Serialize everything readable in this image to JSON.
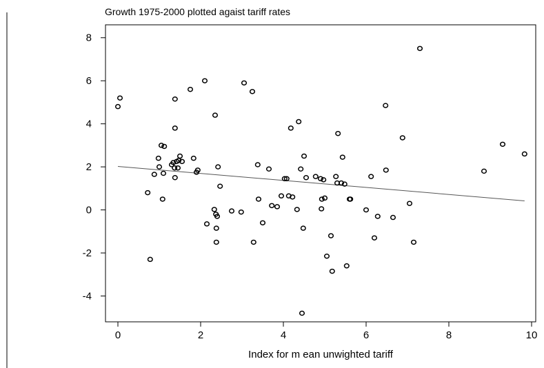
{
  "chart_data": {
    "type": "scatter",
    "title": "Growth 1975-2000 plotted agaist tariff rates",
    "xlabel": "Index for m ean unwighted tariff",
    "ylabel": "",
    "xlim": [
      -0.3,
      10.1
    ],
    "ylim": [
      -5.2,
      8.6
    ],
    "xticks": [
      0,
      2,
      4,
      6,
      8,
      10
    ],
    "yticks": [
      -4,
      -2,
      0,
      2,
      4,
      6,
      8
    ],
    "grid": false,
    "legend": "none",
    "marker": "hollow-circle",
    "colors": {
      "points": "#000000",
      "fit_line": "#555555",
      "axes": "#000000"
    },
    "points": [
      [
        0.0,
        4.8
      ],
      [
        0.05,
        5.2
      ],
      [
        0.72,
        0.8
      ],
      [
        0.78,
        -2.3
      ],
      [
        0.88,
        1.65
      ],
      [
        0.98,
        2.4
      ],
      [
        1.0,
        2.0
      ],
      [
        1.05,
        3.0
      ],
      [
        1.08,
        0.5
      ],
      [
        1.1,
        1.7
      ],
      [
        1.12,
        2.95
      ],
      [
        1.3,
        2.1
      ],
      [
        1.34,
        2.2
      ],
      [
        1.37,
        1.95
      ],
      [
        1.38,
        1.5
      ],
      [
        1.38,
        3.8
      ],
      [
        1.38,
        5.15
      ],
      [
        1.42,
        2.25
      ],
      [
        1.45,
        1.95
      ],
      [
        1.47,
        2.3
      ],
      [
        1.5,
        2.5
      ],
      [
        1.55,
        2.25
      ],
      [
        1.75,
        5.6
      ],
      [
        1.83,
        2.4
      ],
      [
        1.9,
        1.75
      ],
      [
        1.93,
        1.85
      ],
      [
        2.1,
        6.0
      ],
      [
        2.15,
        -0.65
      ],
      [
        2.33,
        0.02
      ],
      [
        2.35,
        4.4
      ],
      [
        2.37,
        -0.2
      ],
      [
        2.38,
        -0.85
      ],
      [
        2.38,
        -1.5
      ],
      [
        2.4,
        -0.3
      ],
      [
        2.42,
        2.0
      ],
      [
        2.47,
        1.1
      ],
      [
        2.75,
        -0.05
      ],
      [
        2.98,
        -0.1
      ],
      [
        3.05,
        5.9
      ],
      [
        3.25,
        5.5
      ],
      [
        3.28,
        -1.5
      ],
      [
        3.38,
        2.1
      ],
      [
        3.4,
        0.5
      ],
      [
        3.5,
        -0.6
      ],
      [
        3.65,
        1.9
      ],
      [
        3.72,
        0.2
      ],
      [
        3.85,
        0.15
      ],
      [
        3.95,
        0.65
      ],
      [
        4.03,
        1.45
      ],
      [
        4.08,
        1.45
      ],
      [
        4.13,
        0.65
      ],
      [
        4.18,
        3.8
      ],
      [
        4.22,
        0.6
      ],
      [
        4.33,
        0.02
      ],
      [
        4.37,
        4.1
      ],
      [
        4.42,
        1.9
      ],
      [
        4.45,
        -4.8
      ],
      [
        4.48,
        -0.85
      ],
      [
        4.5,
        2.5
      ],
      [
        4.55,
        1.5
      ],
      [
        4.78,
        1.55
      ],
      [
        4.9,
        1.45
      ],
      [
        4.92,
        0.05
      ],
      [
        4.93,
        0.5
      ],
      [
        4.97,
        1.4
      ],
      [
        5.0,
        0.55
      ],
      [
        5.05,
        -2.15
      ],
      [
        5.15,
        -1.2
      ],
      [
        5.18,
        -2.85
      ],
      [
        5.27,
        1.55
      ],
      [
        5.3,
        1.25
      ],
      [
        5.32,
        3.55
      ],
      [
        5.4,
        1.25
      ],
      [
        5.43,
        2.45
      ],
      [
        5.48,
        1.2
      ],
      [
        5.53,
        -2.6
      ],
      [
        5.6,
        0.5
      ],
      [
        5.62,
        0.5
      ],
      [
        6.0,
        0.0
      ],
      [
        6.12,
        1.55
      ],
      [
        6.2,
        -1.3
      ],
      [
        6.28,
        -0.3
      ],
      [
        6.47,
        4.85
      ],
      [
        6.48,
        1.85
      ],
      [
        6.65,
        -0.35
      ],
      [
        6.88,
        3.35
      ],
      [
        7.05,
        0.3
      ],
      [
        7.15,
        -1.5
      ],
      [
        7.3,
        7.5
      ],
      [
        8.85,
        1.8
      ],
      [
        9.3,
        3.05
      ],
      [
        9.83,
        2.6
      ]
    ],
    "fit_line": {
      "x": [
        0.0,
        9.83
      ],
      "y": [
        2.02,
        0.42
      ]
    }
  }
}
